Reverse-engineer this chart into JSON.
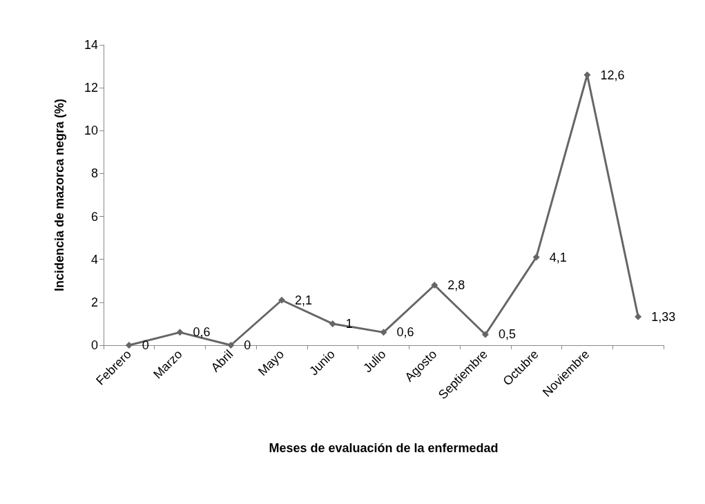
{
  "chart_data": {
    "type": "line",
    "xlabel": "Meses de evaluación de la enfermedad",
    "ylabel": "Incidencia de mazorca negra (%)",
    "categories": [
      "Febrero",
      "Marzo",
      "Abril",
      "Mayo",
      "Junio",
      "Julio",
      "Agosto",
      "Septiembre",
      "Octubre",
      "Noviembre",
      null
    ],
    "series": [
      {
        "color": "#666666",
        "values": [
          0,
          0.6,
          0,
          2.1,
          1,
          0.6,
          2.8,
          0.5,
          4.1,
          12.6,
          1.33
        ],
        "value_labels": [
          "0",
          "0,6",
          "0",
          "2,1",
          "1",
          "0,6",
          "2,8",
          "0,5",
          "4,1",
          "12,6",
          "1,33"
        ]
      }
    ],
    "ylim": [
      0,
      14
    ],
    "yticks": [
      0,
      2,
      4,
      6,
      8,
      10,
      12,
      14
    ],
    "grid": false,
    "marker": "diamond",
    "line_style": "solid"
  }
}
